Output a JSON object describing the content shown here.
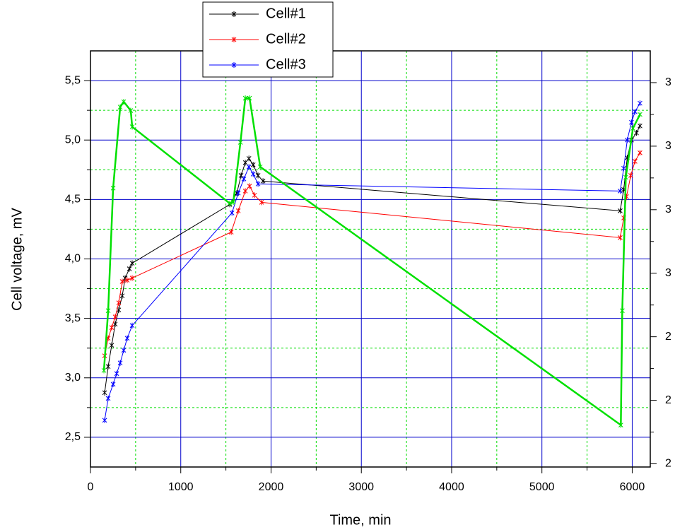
{
  "chart_data": {
    "type": "line",
    "x_label": "Time, min",
    "y_label": "Cell voltage, mV",
    "xlim": [
      0,
      6200
    ],
    "xticks": [
      0,
      1000,
      2000,
      3000,
      4000,
      5000,
      6000
    ],
    "ylim": [
      2.25,
      5.75
    ],
    "yticks": [
      {
        "value": 2.5,
        "label": "2,5"
      },
      {
        "value": 3.0,
        "label": "3,0"
      },
      {
        "value": 3.5,
        "label": "3,5"
      },
      {
        "value": 4.0,
        "label": "4,0"
      },
      {
        "value": 4.5,
        "label": "4,5"
      },
      {
        "value": 5.0,
        "label": "5,0"
      },
      {
        "value": 5.5,
        "label": "5,5"
      }
    ],
    "y2lim": [
      1.99,
      3.3
    ],
    "y2ticks": [
      2,
      {
        "value": 2.2,
        "label": "2"
      },
      {
        "value": 2.4,
        "label": "2"
      },
      {
        "value": 2.6,
        "label": "3"
      },
      {
        "value": 2.8,
        "label": "3"
      },
      {
        "value": 3.0,
        "label": "3"
      },
      {
        "value": 3.2,
        "label": "3"
      }
    ],
    "grid": true,
    "legend": "top",
    "series": [
      {
        "name": "Cell#1",
        "color": "#000000",
        "x": [
          157,
          196,
          235,
          274,
          313,
          352,
          384,
          431,
          462,
          1543,
          1621,
          1668,
          1715,
          1755,
          1802,
          1856,
          1911,
          5867,
          5906,
          5945,
          5992,
          6047,
          6086
        ],
        "values": [
          2.875,
          3.095,
          3.274,
          3.452,
          3.571,
          3.69,
          3.839,
          3.917,
          3.964,
          4.458,
          4.554,
          4.702,
          4.81,
          4.845,
          4.792,
          4.702,
          4.655,
          4.405,
          4.583,
          4.851,
          5.0,
          5.06,
          5.119
        ]
      },
      {
        "name": "Cell#2",
        "color": "#ff0000",
        "x": [
          157,
          196,
          235,
          274,
          313,
          352,
          407,
          462,
          1559,
          1637,
          1715,
          1762,
          1817,
          1895,
          5867,
          5906,
          5937,
          5984,
          6031,
          6086
        ],
        "values": [
          3.185,
          3.333,
          3.423,
          3.512,
          3.631,
          3.81,
          3.821,
          3.839,
          4.226,
          4.405,
          4.571,
          4.613,
          4.536,
          4.476,
          4.179,
          4.345,
          4.524,
          4.702,
          4.821,
          4.893
        ]
      },
      {
        "name": "Cell#3",
        "color": "#0000ff",
        "x": [
          157,
          196,
          251,
          290,
          329,
          368,
          407,
          462,
          1567,
          1637,
          1699,
          1755,
          1802,
          1856,
          5867,
          5906,
          5945,
          5992,
          6031,
          6086
        ],
        "values": [
          2.643,
          2.827,
          2.946,
          3.036,
          3.125,
          3.232,
          3.333,
          3.44,
          4.387,
          4.554,
          4.673,
          4.774,
          4.714,
          4.631,
          4.571,
          4.762,
          5.0,
          5.149,
          5.238,
          5.31
        ]
      },
      {
        "color": "#00e000",
        "axis": "y2",
        "x": [
          149,
          196,
          251,
          329,
          368,
          446,
          462,
          1543,
          1582,
          1661,
          1715,
          1762,
          1880,
          5874,
          5890,
          5929,
          6008,
          6086
        ],
        "values": [
          2.294,
          2.482,
          2.868,
          3.123,
          3.14,
          3.112,
          3.061,
          2.82,
          2.824,
          3.012,
          3.151,
          3.151,
          2.935,
          2.122,
          2.482,
          2.902,
          3.056,
          3.1
        ]
      }
    ]
  }
}
